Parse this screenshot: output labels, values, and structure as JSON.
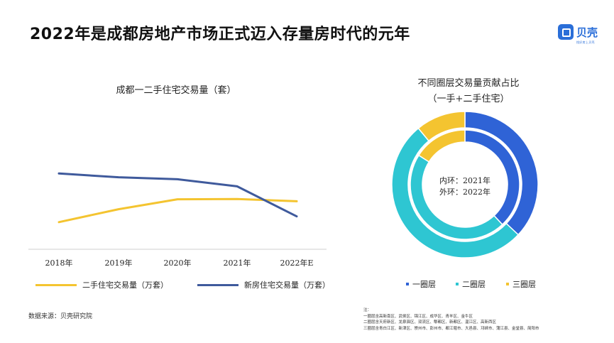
{
  "page": {
    "title": "2022年是成都房地产市场正式迈入存量房时代的元年",
    "logo_text": "贝壳",
    "logo_sub": "找好房上贝壳",
    "source": "数据来源：贝壳研究院"
  },
  "note": {
    "label": "注：",
    "lines": [
      "一圈层含高新南区、武侯区、锦江区、成华区、青羊区、金牛区",
      "二圈层含天府新区、龙泉驿区、双流区、郫都区、新都区、温江区、高新西区",
      "三圈层含青白江区、新津区、崇州市、彭州市、都江堰市、大邑县、邛崃市、蒲江县、金堂县、简阳市"
    ]
  },
  "colors": {
    "resale": "#f4c430",
    "new_home": "#3f5a9c",
    "ring1": "#2f63d6",
    "ring2": "#2ec6d2",
    "ring3": "#f4c430"
  },
  "chart_data": [
    {
      "type": "line",
      "title": "成都一二手住宅交易量（套）",
      "categories": [
        "2018年",
        "2019年",
        "2020年",
        "2021年",
        "2022年E"
      ],
      "series": [
        {
          "name": "二手住宅交易量（万套）",
          "values": [
            9.5,
            14.0,
            17.5,
            17.6,
            16.8
          ]
        },
        {
          "name": "新房住宅交易量（万套）",
          "values": [
            26.5,
            25.2,
            24.5,
            22.0,
            11.5
          ]
        }
      ],
      "ylim": [
        0,
        40
      ],
      "legend_position": "bottom",
      "grid": false
    },
    {
      "type": "pie",
      "title_lines": [
        "不同圈层交易量贡献占比",
        "（一手+二手住宅）"
      ],
      "center_lines": [
        "内环：2021年",
        "外环：2022年"
      ],
      "labels": [
        "一圈层",
        "二圈层",
        "三圈层"
      ],
      "rings": [
        {
          "name": "2021年",
          "values": [
            38,
            46,
            16
          ]
        },
        {
          "name": "2022年",
          "values": [
            37,
            52,
            11
          ]
        }
      ],
      "legend_position": "bottom"
    }
  ]
}
